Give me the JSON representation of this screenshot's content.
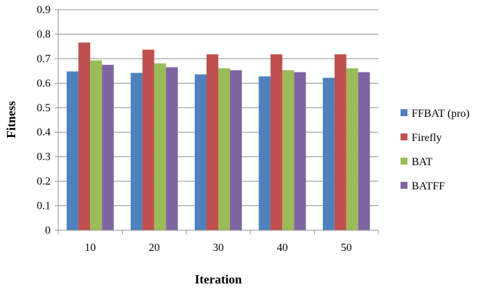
{
  "chart_data": {
    "type": "bar",
    "title": "",
    "xlabel": "Iteration",
    "ylabel": "Fitness",
    "categories": [
      "10",
      "20",
      "30",
      "40",
      "50"
    ],
    "ylim": [
      0,
      0.9
    ],
    "yticks": [
      "0",
      "0.1",
      "0.2",
      "0.3",
      "0.4",
      "0.5",
      "0.6",
      "0.7",
      "0.8",
      "0.9"
    ],
    "grid": true,
    "legend_position": "right",
    "series": [
      {
        "name": "FFBAT (pro)",
        "color": "#4f81bd",
        "values": [
          0.648,
          0.642,
          0.636,
          0.628,
          0.622
        ]
      },
      {
        "name": "Firefly",
        "color": "#c0504d",
        "values": [
          0.766,
          0.737,
          0.718,
          0.718,
          0.718
        ]
      },
      {
        "name": "BAT",
        "color": "#9bbb59",
        "values": [
          0.693,
          0.681,
          0.661,
          0.653,
          0.661
        ]
      },
      {
        "name": "BATFF",
        "color": "#8064a2",
        "values": [
          0.675,
          0.665,
          0.653,
          0.645,
          0.645
        ]
      }
    ]
  }
}
